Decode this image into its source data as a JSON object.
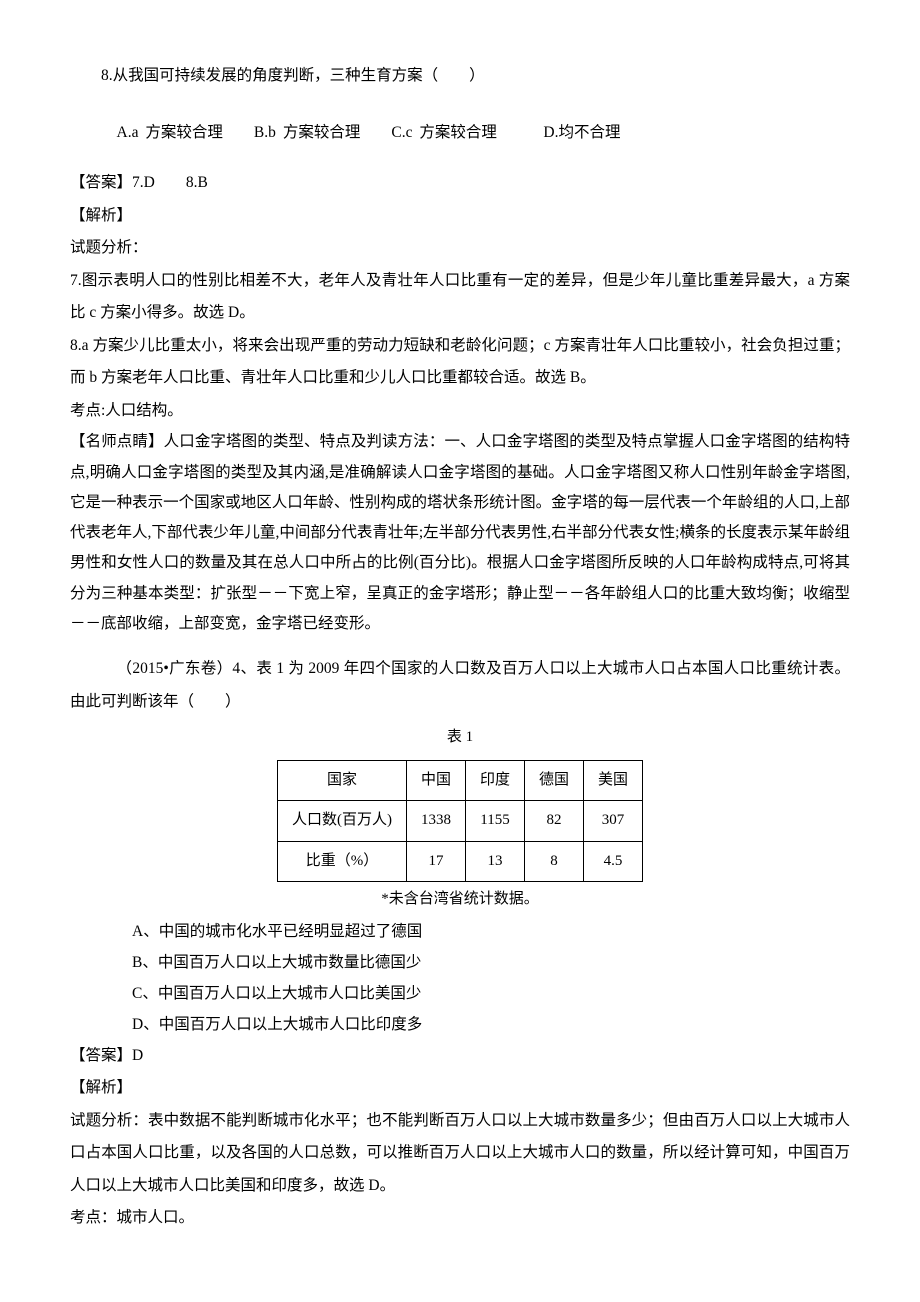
{
  "q8": {
    "stem": "8.从我国可持续发展的角度判断，三种生育方案（　　）",
    "choices": "A.a 方案较合理　　B.b 方案较合理　　C.c 方案较合理　　　D.均不合理"
  },
  "answer78": "【答案】7.D　　8.B",
  "jiexi_hdr": "【解析】",
  "shiti": "试题分析：",
  "a7": "7.图示表明人口的性别比相差不大，老年人及青壮年人口比重有一定的差异，但是少年儿童比重差异最大，a 方案比 c 方案小得多。故选 D。",
  "a8": " 8.a 方案少儿比重太小，将来会出现严重的劳动力短缺和老龄化问题；c 方案青壮年人口比重较小，社会负担过重；而 b 方案老年人口比重、青壮年人口比重和少儿人口比重都较合适。故选 B。",
  "kaodian1": "考点:人口结构。",
  "mingshi": "【名师点睛】人口金字塔图的类型、特点及判读方法：一、人口金字塔图的类型及特点掌握人口金字塔图的结构特点,明确人口金字塔图的类型及其内涵,是准确解读人口金字塔图的基础。人口金字塔图又称人口性别年龄金字塔图,它是一种表示一个国家或地区人口年龄、性别构成的塔状条形统计图。金字塔的每一层代表一个年龄组的人口,上部代表老年人,下部代表少年儿童,中间部分代表青壮年;左半部分代表男性,右半部分代表女性;横条的长度表示某年龄组男性和女性人口的数量及其在总人口中所占的比例(百分比)。根据人口金字塔图所反映的人口年龄构成特点,可将其分为三种基本类型：扩张型－－下宽上窄，呈真正的金字塔形；静止型－－各年龄组人口的比重大致均衡；收缩型－－底部收缩，上部变宽，金字塔已经变形。",
  "q4": {
    "intro": "（2015•广东卷）4、表 1 为 2009 年四个国家的人口数及百万人口以上大城市人口占本国人口比重统计表。由此可判断该年（　　）",
    "caption": "表 1",
    "headers": [
      "国家",
      "中国",
      "印度",
      "德国",
      "美国"
    ],
    "row1_label": "人口数(百万人)",
    "row1": [
      "1338",
      "1155",
      "82",
      "307"
    ],
    "row2_label": "比重（%）",
    "row2": [
      "17",
      "13",
      "8",
      "4.5"
    ],
    "note": "*未含台湾省统计数据。",
    "optA": "A、中国的城市化水平已经明显超过了德国",
    "optB": "B、中国百万人口以上大城市数量比德国少",
    "optC": "C、中国百万人口以上大城市人口比美国少",
    "optD": "D、中国百万人口以上大城市人口比印度多"
  },
  "answer4": "【答案】D",
  "jiexi_hdr2": "【解析】",
  "shiti2": "试题分析：表中数据不能判断城市化水平；也不能判断百万人口以上大城市数量多少；但由百万人口以上大城市人口占本国人口比重，以及各国的人口总数，可以推断百万人口以上大城市人口的数量，所以经计算可知，中国百万人口以上大城市人口比美国和印度多，故选 D。",
  "kaodian2": "考点：城市人口。"
}
